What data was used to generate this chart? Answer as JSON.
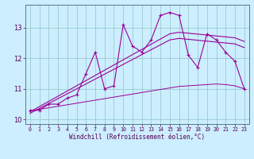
{
  "x": [
    0,
    1,
    2,
    3,
    4,
    5,
    6,
    7,
    8,
    9,
    10,
    11,
    12,
    13,
    14,
    15,
    16,
    17,
    18,
    19,
    20,
    21,
    22,
    23
  ],
  "y_main": [
    10.3,
    10.3,
    10.5,
    10.5,
    10.7,
    10.8,
    11.5,
    12.2,
    11.0,
    11.1,
    13.1,
    12.4,
    12.2,
    12.6,
    13.4,
    13.5,
    13.4,
    12.1,
    11.7,
    12.8,
    12.6,
    12.2,
    11.9,
    11.0
  ],
  "y_upper": [
    10.25,
    10.42,
    10.59,
    10.76,
    10.93,
    11.1,
    11.27,
    11.44,
    11.61,
    11.78,
    11.95,
    12.12,
    12.29,
    12.46,
    12.63,
    12.8,
    12.85,
    12.82,
    12.79,
    12.76,
    12.73,
    12.7,
    12.67,
    12.55
  ],
  "y_lower": [
    10.2,
    10.36,
    10.52,
    10.68,
    10.84,
    11.0,
    11.16,
    11.32,
    11.48,
    11.64,
    11.8,
    11.96,
    12.12,
    12.28,
    12.44,
    12.6,
    12.65,
    12.62,
    12.59,
    12.56,
    12.53,
    12.5,
    12.47,
    12.35
  ],
  "y_bottom": [
    10.28,
    10.33,
    10.38,
    10.43,
    10.48,
    10.53,
    10.58,
    10.63,
    10.68,
    10.73,
    10.78,
    10.83,
    10.88,
    10.93,
    10.98,
    11.03,
    11.08,
    11.1,
    11.12,
    11.14,
    11.16,
    11.14,
    11.1,
    11.0
  ],
  "line_color": "#990099",
  "bg_color": "#cceeff",
  "grid_color": "#99cccc",
  "xlabel": "Windchill (Refroidissement éolien,°C)",
  "ylim": [
    9.85,
    13.75
  ],
  "xlim": [
    -0.5,
    23.5
  ],
  "yticks": [
    10,
    11,
    12,
    13
  ],
  "xticks": [
    0,
    1,
    2,
    3,
    4,
    5,
    6,
    7,
    8,
    9,
    10,
    11,
    12,
    13,
    14,
    15,
    16,
    17,
    18,
    19,
    20,
    21,
    22,
    23
  ]
}
